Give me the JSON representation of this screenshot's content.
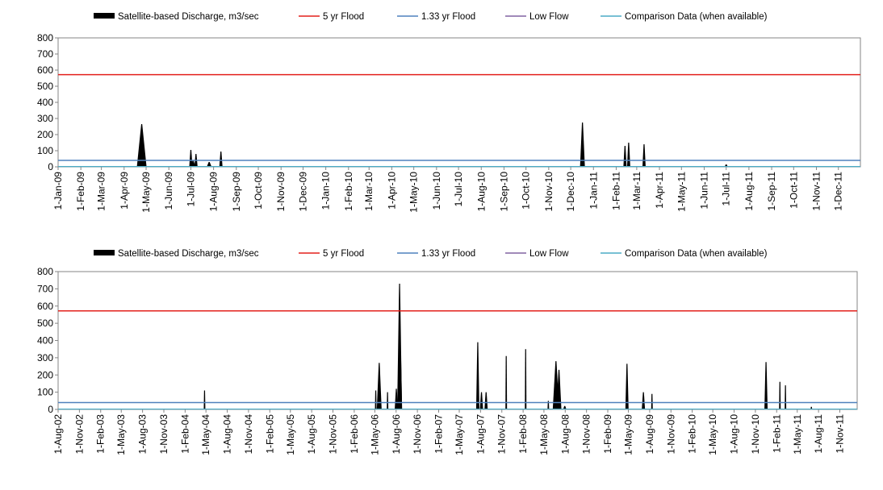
{
  "colors": {
    "discharge": "#000000",
    "flood5": "#e3201b",
    "flood133": "#4f81bd",
    "lowflow": "#8064a2",
    "comparison": "#4bacc6"
  },
  "chart_data": [
    {
      "type": "area",
      "legend": [
        {
          "name": "Satellite-based Discharge, m3/sec",
          "style": "area"
        },
        {
          "name": "5 yr Flood",
          "style": "line"
        },
        {
          "name": "1.33 yr Flood",
          "style": "line"
        },
        {
          "name": "Low Flow",
          "style": "line"
        },
        {
          "name": "Comparison Data (when available)",
          "style": "line"
        }
      ],
      "ylim": [
        0,
        800
      ],
      "yticks": [
        "0",
        "100",
        "200",
        "300",
        "400",
        "500",
        "600",
        "700",
        "800"
      ],
      "xlim": [
        "2009-01-01",
        "2011-12-31"
      ],
      "xticks": [
        "1-Jan-09",
        "1-Feb-09",
        "1-Mar-09",
        "1-Apr-09",
        "1-May-09",
        "1-Jun-09",
        "1-Jul-09",
        "1-Aug-09",
        "1-Sep-09",
        "1-Oct-09",
        "1-Nov-09",
        "1-Dec-09",
        "1-Jan-10",
        "1-Feb-10",
        "1-Mar-10",
        "1-Apr-10",
        "1-May-10",
        "1-Jun-10",
        "1-Jul-10",
        "1-Aug-10",
        "1-Sep-10",
        "1-Oct-10",
        "1-Nov-10",
        "1-Dec-10",
        "1-Jan-11",
        "1-Feb-11",
        "1-Mar-11",
        "1-Apr-11",
        "1-May-11",
        "1-Jun-11",
        "1-Jul-11",
        "1-Aug-11",
        "1-Sep-11",
        "1-Oct-11",
        "1-Nov-11",
        "1-Dec-11"
      ],
      "flood5": 572,
      "flood133": 40,
      "lowflow": 2,
      "peaks": [
        {
          "date": "2009-04-25",
          "value": 265,
          "width": 6
        },
        {
          "date": "2009-07-01",
          "value": 105,
          "width": 2
        },
        {
          "date": "2009-07-04",
          "value": 40,
          "width": 3
        },
        {
          "date": "2009-07-08",
          "value": 80,
          "width": 2
        },
        {
          "date": "2009-07-26",
          "value": 30,
          "width": 3
        },
        {
          "date": "2009-08-11",
          "value": 95,
          "width": 2
        },
        {
          "date": "2010-12-17",
          "value": 275,
          "width": 3
        },
        {
          "date": "2011-02-13",
          "value": 130,
          "width": 2
        },
        {
          "date": "2011-02-18",
          "value": 150,
          "width": 2
        },
        {
          "date": "2011-03-11",
          "value": 140,
          "width": 2
        },
        {
          "date": "2011-07-01",
          "value": 15,
          "width": 2
        }
      ]
    },
    {
      "type": "area",
      "legend": [
        {
          "name": "Satellite-based Discharge, m3/sec",
          "style": "area"
        },
        {
          "name": "5 yr Flood",
          "style": "line"
        },
        {
          "name": "1.33 yr Flood",
          "style": "line"
        },
        {
          "name": "Low Flow",
          "style": "line"
        },
        {
          "name": "Comparison Data (when available)",
          "style": "line"
        }
      ],
      "ylim": [
        0,
        800
      ],
      "yticks": [
        "0",
        "100",
        "200",
        "300",
        "400",
        "500",
        "600",
        "700",
        "800"
      ],
      "xlim": [
        "2002-08-01",
        "2012-01-15"
      ],
      "xticks": [
        "1-Aug-02",
        "1-Nov-02",
        "1-Feb-03",
        "1-May-03",
        "1-Aug-03",
        "1-Nov-03",
        "1-Feb-04",
        "1-May-04",
        "1-Aug-04",
        "1-Nov-04",
        "1-Feb-05",
        "1-May-05",
        "1-Aug-05",
        "1-Nov-05",
        "1-Feb-06",
        "1-May-06",
        "1-Aug-06",
        "1-Nov-06",
        "1-Feb-07",
        "1-May-07",
        "1-Aug-07",
        "1-Nov-07",
        "1-Feb-08",
        "1-May-08",
        "1-Aug-08",
        "1-Nov-08",
        "1-Feb-09",
        "1-May-09",
        "1-Aug-09",
        "1-Nov-09",
        "1-Feb-10",
        "1-May-10",
        "1-Aug-10",
        "1-Nov-10",
        "1-Feb-11",
        "1-May-11",
        "1-Aug-11",
        "1-Nov-11"
      ],
      "flood5": 572,
      "flood133": 40,
      "lowflow": 2,
      "peaks": [
        {
          "date": "2004-04-25",
          "value": 110,
          "width": 1
        },
        {
          "date": "2006-05-05",
          "value": 110,
          "width": 1
        },
        {
          "date": "2006-05-20",
          "value": 270,
          "width": 3
        },
        {
          "date": "2006-06-25",
          "value": 100,
          "width": 1
        },
        {
          "date": "2006-08-02",
          "value": 120,
          "width": 2
        },
        {
          "date": "2006-08-16",
          "value": 730,
          "width": 3
        },
        {
          "date": "2006-08-20",
          "value": 330,
          "width": 2
        },
        {
          "date": "2007-07-20",
          "value": 390,
          "width": 2
        },
        {
          "date": "2007-08-05",
          "value": 100,
          "width": 2
        },
        {
          "date": "2007-08-25",
          "value": 100,
          "width": 2
        },
        {
          "date": "2007-11-20",
          "value": 310,
          "width": 1
        },
        {
          "date": "2008-02-12",
          "value": 350,
          "width": 1
        },
        {
          "date": "2008-05-20",
          "value": 50,
          "width": 1
        },
        {
          "date": "2008-06-22",
          "value": 280,
          "width": 4
        },
        {
          "date": "2008-07-05",
          "value": 230,
          "width": 3
        },
        {
          "date": "2008-07-30",
          "value": 20,
          "width": 2
        },
        {
          "date": "2009-04-25",
          "value": 265,
          "width": 2
        },
        {
          "date": "2009-07-05",
          "value": 100,
          "width": 2
        },
        {
          "date": "2009-08-11",
          "value": 90,
          "width": 1
        },
        {
          "date": "2010-12-17",
          "value": 275,
          "width": 2
        },
        {
          "date": "2011-02-15",
          "value": 160,
          "width": 1
        },
        {
          "date": "2011-03-11",
          "value": 140,
          "width": 1
        },
        {
          "date": "2011-07-01",
          "value": 15,
          "width": 1
        }
      ]
    }
  ]
}
